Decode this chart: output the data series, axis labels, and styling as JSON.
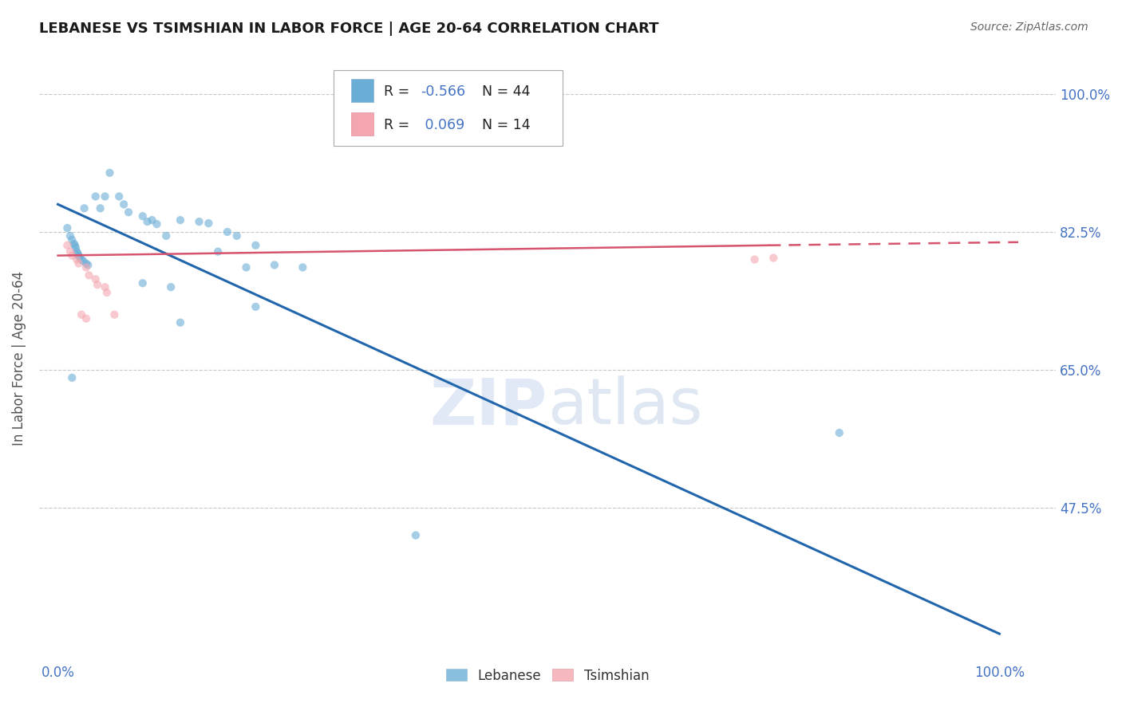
{
  "title": "LEBANESE VS TSIMSHIAN IN LABOR FORCE | AGE 20-64 CORRELATION CHART",
  "source": "Source: ZipAtlas.com",
  "ylabel": "In Labor Force | Age 20-64",
  "ytick_values": [
    1.0,
    0.825,
    0.65,
    0.475
  ],
  "ytick_labels": [
    "100.0%",
    "82.5%",
    "65.0%",
    "47.5%"
  ],
  "watermark": "ZIPatlas",
  "blue_scatter": [
    [
      0.01,
      0.83
    ],
    [
      0.013,
      0.82
    ],
    [
      0.015,
      0.815
    ],
    [
      0.017,
      0.81
    ],
    [
      0.018,
      0.808
    ],
    [
      0.019,
      0.805
    ],
    [
      0.02,
      0.8
    ],
    [
      0.021,
      0.798
    ],
    [
      0.022,
      0.795
    ],
    [
      0.023,
      0.793
    ],
    [
      0.025,
      0.79
    ],
    [
      0.027,
      0.788
    ],
    [
      0.03,
      0.785
    ],
    [
      0.032,
      0.783
    ],
    [
      0.028,
      0.855
    ],
    [
      0.04,
      0.87
    ],
    [
      0.045,
      0.855
    ],
    [
      0.05,
      0.87
    ],
    [
      0.055,
      0.9
    ],
    [
      0.065,
      0.87
    ],
    [
      0.07,
      0.86
    ],
    [
      0.075,
      0.85
    ],
    [
      0.09,
      0.845
    ],
    [
      0.095,
      0.838
    ],
    [
      0.1,
      0.84
    ],
    [
      0.105,
      0.835
    ],
    [
      0.115,
      0.82
    ],
    [
      0.13,
      0.84
    ],
    [
      0.15,
      0.838
    ],
    [
      0.16,
      0.836
    ],
    [
      0.17,
      0.8
    ],
    [
      0.18,
      0.825
    ],
    [
      0.19,
      0.82
    ],
    [
      0.2,
      0.78
    ],
    [
      0.21,
      0.808
    ],
    [
      0.23,
      0.783
    ],
    [
      0.26,
      0.78
    ],
    [
      0.09,
      0.76
    ],
    [
      0.12,
      0.755
    ],
    [
      0.015,
      0.64
    ],
    [
      0.13,
      0.71
    ],
    [
      0.21,
      0.73
    ],
    [
      0.38,
      0.44
    ],
    [
      0.83,
      0.57
    ]
  ],
  "pink_scatter": [
    [
      0.01,
      0.808
    ],
    [
      0.013,
      0.8
    ],
    [
      0.015,
      0.795
    ],
    [
      0.02,
      0.79
    ],
    [
      0.022,
      0.785
    ],
    [
      0.03,
      0.78
    ],
    [
      0.033,
      0.77
    ],
    [
      0.04,
      0.765
    ],
    [
      0.042,
      0.758
    ],
    [
      0.05,
      0.755
    ],
    [
      0.052,
      0.748
    ],
    [
      0.025,
      0.72
    ],
    [
      0.03,
      0.715
    ],
    [
      0.06,
      0.72
    ],
    [
      0.74,
      0.79
    ],
    [
      0.76,
      0.792
    ]
  ],
  "blue_line": [
    [
      0.0,
      0.86
    ],
    [
      1.0,
      0.315
    ]
  ],
  "pink_line_solid": [
    [
      0.0,
      0.795
    ],
    [
      0.755,
      0.808
    ]
  ],
  "pink_line_dashed": [
    [
      0.755,
      0.808
    ],
    [
      1.02,
      0.812
    ]
  ],
  "blue_color": "#6aaed6",
  "pink_color": "#f4a6b0",
  "blue_line_color": "#2166ac",
  "pink_line_color": "#d6546e",
  "scatter_alpha": 0.6,
  "scatter_size": 55,
  "ylim": [
    0.28,
    1.05
  ],
  "xlim": [
    -0.02,
    1.06
  ]
}
